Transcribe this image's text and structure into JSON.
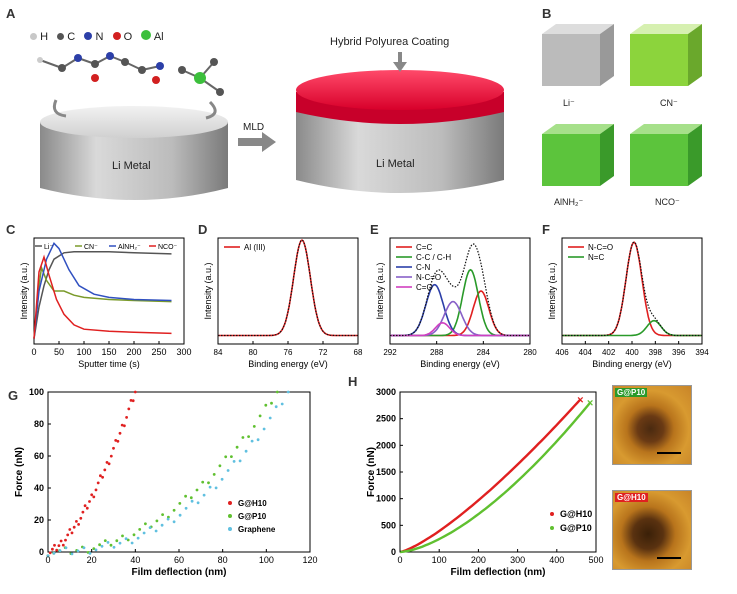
{
  "panels": {
    "a": "A",
    "b": "B",
    "c": "C",
    "d": "D",
    "e": "E",
    "f": "F",
    "g": "G",
    "h": "H"
  },
  "panel_a": {
    "legend": [
      {
        "sym": "H",
        "color": "#c8c8c8"
      },
      {
        "sym": "C",
        "color": "#555555"
      },
      {
        "sym": "N",
        "color": "#2c3fa8"
      },
      {
        "sym": "O",
        "color": "#d22020"
      },
      {
        "sym": "Al",
        "color": "#3cbf3c"
      }
    ],
    "li_metal_left": "Li Metal",
    "li_metal_right": "Li Metal",
    "arrow_label": "MLD",
    "coating_label": "Hybrid Polyurea Coating"
  },
  "panel_b": {
    "labels": [
      "Li⁻",
      "CN⁻",
      "AlNH₂⁻",
      "NCO⁻"
    ]
  },
  "chart_data": [
    {
      "id": "C",
      "type": "line",
      "xlabel": "Sputter time (s)",
      "ylabel": "Intensity (a.u.)",
      "xticks": [
        "0",
        "50",
        "100",
        "150",
        "200",
        "250",
        "300"
      ],
      "xlim": [
        0,
        300
      ],
      "legend": [
        "Li⁻",
        "CN⁻",
        "AlNH₂⁻",
        "NCO⁻"
      ],
      "series": [
        {
          "name": "Li⁻",
          "color": "#555555",
          "x": [
            0,
            10,
            20,
            30,
            40,
            60,
            80,
            100,
            150,
            200,
            275
          ],
          "y": [
            0.05,
            0.35,
            0.55,
            0.7,
            0.8,
            0.86,
            0.87,
            0.87,
            0.87,
            0.86,
            0.85
          ]
        },
        {
          "name": "CN⁻",
          "color": "#7a9a2a",
          "x": [
            0,
            10,
            15,
            25,
            40,
            60,
            80,
            100,
            150,
            200,
            275
          ],
          "y": [
            0.05,
            0.55,
            0.72,
            0.6,
            0.5,
            0.5,
            0.46,
            0.44,
            0.42,
            0.41,
            0.4
          ]
        },
        {
          "name": "AlNH₂⁻",
          "color": "#3050c0",
          "x": [
            0,
            10,
            25,
            40,
            50,
            70,
            90,
            120,
            150,
            200,
            275
          ],
          "y": [
            0.05,
            0.5,
            0.8,
            0.95,
            0.9,
            0.7,
            0.55,
            0.47,
            0.44,
            0.42,
            0.41
          ]
        },
        {
          "name": "NCO⁻",
          "color": "#e02020",
          "x": [
            0,
            10,
            20,
            30,
            45,
            60,
            80,
            100,
            150,
            200,
            275
          ],
          "y": [
            0.05,
            0.68,
            0.82,
            0.65,
            0.42,
            0.28,
            0.18,
            0.14,
            0.12,
            0.11,
            0.1
          ]
        }
      ]
    },
    {
      "id": "D",
      "type": "line",
      "xlabel": "Binding energy (eV)",
      "ylabel": "Intensity (a.u.)",
      "xticks": [
        "84",
        "80",
        "76",
        "72",
        "68"
      ],
      "xlim": [
        86,
        66
      ],
      "legend": [
        "Al (III)"
      ],
      "series": [
        {
          "name": "Al (III)",
          "color": "#e02020",
          "peak": 74,
          "width": 1.2,
          "height": 0.9
        }
      ]
    },
    {
      "id": "E",
      "type": "line",
      "xlabel": "Binding energy (eV)",
      "ylabel": "Intensity (a.u.)",
      "xticks": [
        "292",
        "288",
        "284",
        "280"
      ],
      "xlim": [
        294,
        278
      ],
      "legend": [
        "C=C",
        "C-C / C-H",
        "C-N",
        "N-C=O",
        "C=O"
      ],
      "series": [
        {
          "name": "C=C",
          "color": "#e02020",
          "peak": 283.6,
          "width": 0.9,
          "height": 0.42
        },
        {
          "name": "C-C / C-H",
          "color": "#2a9a2a",
          "peak": 284.8,
          "width": 0.9,
          "height": 0.62
        },
        {
          "name": "C-N",
          "color": "#2c3fa8",
          "peak": 288.9,
          "width": 1.0,
          "height": 0.48
        },
        {
          "name": "N-C=O",
          "color": "#8860c8",
          "peak": 286.8,
          "width": 1.0,
          "height": 0.32
        },
        {
          "name": "C=O",
          "color": "#d040c0",
          "peak": 288.0,
          "width": 0.8,
          "height": 0.12
        }
      ]
    },
    {
      "id": "F",
      "type": "line",
      "xlabel": "Binding energy (eV)",
      "ylabel": "Intensity (a.u.)",
      "xticks": [
        "406",
        "404",
        "402",
        "400",
        "398",
        "396",
        "394"
      ],
      "xlim": [
        407,
        393
      ],
      "legend": [
        "N-C=O",
        "N=C"
      ],
      "series": [
        {
          "name": "N-C=O",
          "color": "#e02020",
          "peak": 399.8,
          "width": 0.8,
          "height": 0.88
        },
        {
          "name": "N=C",
          "color": "#2a9a2a",
          "peak": 397.8,
          "width": 0.7,
          "height": 0.14
        }
      ]
    },
    {
      "id": "G",
      "type": "scatter",
      "xlabel": "Film deflection (nm)",
      "ylabel": "Force (nN)",
      "xticks": [
        "0",
        "20",
        "40",
        "60",
        "80",
        "100",
        "120"
      ],
      "yticks": [
        "0",
        "20",
        "40",
        "60",
        "80",
        "100"
      ],
      "xlim": [
        0,
        120
      ],
      "ylim": [
        0,
        100
      ],
      "legend": [
        "G@H10",
        "G@P10",
        "Graphene"
      ],
      "series": [
        {
          "name": "G@H10",
          "color": "#e02020",
          "xmax": 40,
          "exp": 1.55
        },
        {
          "name": "G@P10",
          "color": "#60c030",
          "xmax": 105,
          "exp": 2.2
        },
        {
          "name": "Graphene",
          "color": "#60c0e0",
          "xmax": 110,
          "exp": 2.4
        }
      ]
    },
    {
      "id": "H",
      "type": "line",
      "xlabel": "Film deflection (nm)",
      "ylabel": "Force (nN)",
      "xticks": [
        "0",
        "100",
        "200",
        "300",
        "400",
        "500"
      ],
      "yticks": [
        "0",
        "500",
        "1000",
        "1500",
        "2000",
        "2500",
        "3000"
      ],
      "xlim": [
        0,
        500
      ],
      "ylim": [
        0,
        3000
      ],
      "legend": [
        "G@H10",
        "G@P10"
      ],
      "series": [
        {
          "name": "G@H10",
          "color": "#e02020",
          "xmax": 460,
          "ymax": 2860,
          "exp": 1.3
        },
        {
          "name": "G@P10",
          "color": "#60c030",
          "xmax": 485,
          "ymax": 2800,
          "exp": 1.55
        }
      ]
    }
  ],
  "afm": [
    {
      "tag": "G@P10",
      "color": "#2a9a2a"
    },
    {
      "tag": "G@H10",
      "color": "#e02020"
    }
  ]
}
